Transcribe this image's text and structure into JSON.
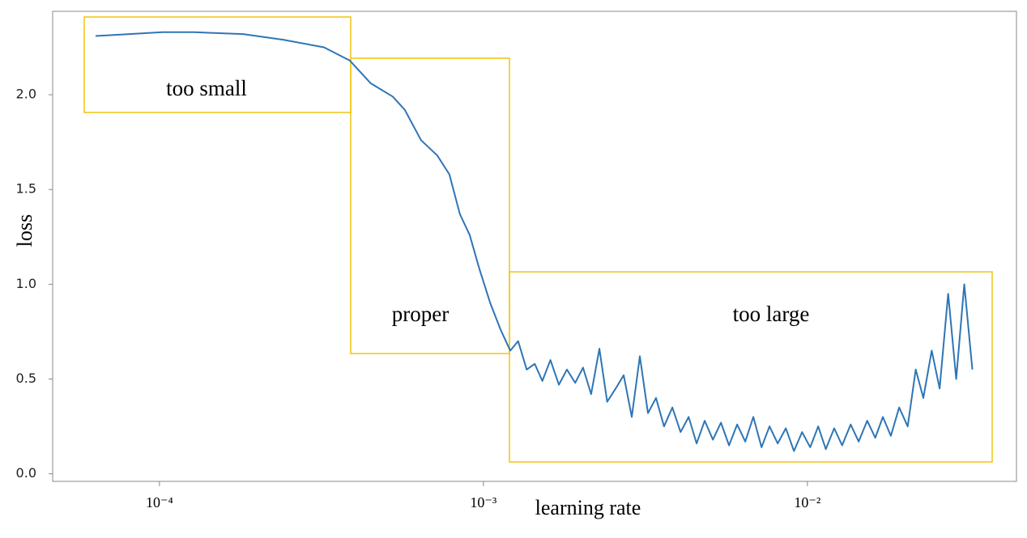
{
  "chart_data": {
    "type": "line",
    "x_label": "learning rate",
    "y_label": "loss",
    "xscale": "log",
    "x": [
      6.35e-05,
      8.08e-05,
      0.000102,
      0.000128,
      0.000181,
      0.000241,
      0.000322,
      0.000387,
      0.000449,
      0.000525,
      0.000572,
      0.000642,
      0.00072,
      0.000785,
      0.000846,
      0.000907,
      0.000972,
      0.00105,
      0.00113,
      0.00121,
      0.00128,
      0.00136,
      0.00144,
      0.00152,
      0.00161,
      0.00171,
      0.00181,
      0.00192,
      0.00203,
      0.00215,
      0.00228,
      0.00241,
      0.00256,
      0.00271,
      0.00287,
      0.00304,
      0.00322,
      0.00341,
      0.00361,
      0.00383,
      0.00406,
      0.0043,
      0.00455,
      0.00482,
      0.00511,
      0.00541,
      0.00573,
      0.00607,
      0.00643,
      0.00681,
      0.00722,
      0.00764,
      0.0081,
      0.00858,
      0.00909,
      0.00963,
      0.0102,
      0.0108,
      0.0114,
      0.0121,
      0.0128,
      0.0136,
      0.0144,
      0.0153,
      0.0162,
      0.0171,
      0.0181,
      0.0192,
      0.0204,
      0.0216,
      0.0228,
      0.0242,
      0.0256,
      0.0272,
      0.0288,
      0.0305,
      0.0323
    ],
    "values": [
      2.31,
      2.32,
      2.33,
      2.33,
      2.32,
      2.29,
      2.25,
      2.18,
      2.06,
      1.99,
      1.92,
      1.76,
      1.68,
      1.58,
      1.37,
      1.26,
      1.08,
      0.9,
      0.76,
      0.65,
      0.7,
      0.55,
      0.58,
      0.49,
      0.6,
      0.47,
      0.55,
      0.48,
      0.56,
      0.42,
      0.66,
      0.38,
      0.45,
      0.52,
      0.3,
      0.62,
      0.32,
      0.4,
      0.25,
      0.35,
      0.22,
      0.3,
      0.16,
      0.28,
      0.18,
      0.27,
      0.15,
      0.26,
      0.17,
      0.3,
      0.14,
      0.25,
      0.16,
      0.24,
      0.12,
      0.22,
      0.14,
      0.25,
      0.13,
      0.24,
      0.15,
      0.26,
      0.17,
      0.28,
      0.19,
      0.3,
      0.2,
      0.35,
      0.25,
      0.55,
      0.4,
      0.65,
      0.45,
      0.95,
      0.5,
      1.0,
      0.55
    ],
    "color": "#2e75b6",
    "xlim": [
      4.68e-05,
      0.0442
    ],
    "xticks": [
      {
        "value": 0.0001,
        "label": "10⁻⁴"
      },
      {
        "value": 0.001,
        "label": "10⁻³"
      },
      {
        "value": 0.01,
        "label": "10⁻²"
      }
    ],
    "ylim": [
      -0.04,
      2.44
    ],
    "yticks": [
      {
        "value": 0,
        "label": "0.0"
      },
      0.5,
      {
        "value": 1,
        "label": "1.0"
      },
      1.5,
      {
        "value": 2,
        "label": "2.0"
      }
    ],
    "annotations": [
      {
        "text": "too small"
      },
      {
        "text": "proper"
      },
      {
        "text": "too large"
      }
    ],
    "annotation_color": "#f2c40f"
  }
}
